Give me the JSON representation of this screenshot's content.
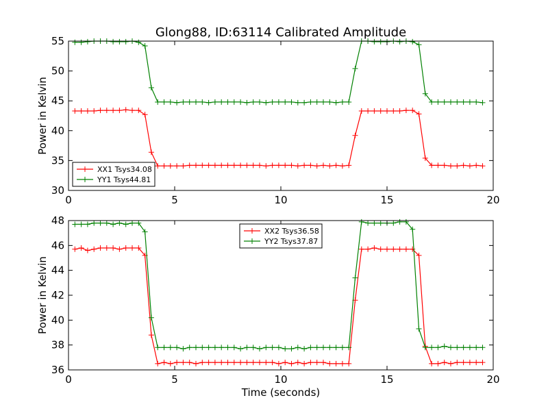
{
  "title": "Glong88, ID:63114 Calibrated Amplitude",
  "colors": {
    "red": "#ff0000",
    "green": "#008000"
  },
  "chart_data": [
    {
      "type": "line",
      "xlim": [
        0,
        20
      ],
      "ylim": [
        30,
        55
      ],
      "xticks": [
        0,
        5,
        10,
        15,
        20
      ],
      "yticks": [
        30,
        35,
        40,
        45,
        50,
        55
      ],
      "xlabel": "",
      "ylabel": "Power in Kelvin",
      "legend_position": "lower-left",
      "grid": false,
      "series": [
        {
          "name": "XX1 Tsys34.08",
          "color": "#ff0000",
          "x": [
            0.3,
            0.6,
            0.9,
            1.2,
            1.5,
            1.8,
            2.1,
            2.4,
            2.7,
            3.0,
            3.3,
            3.6,
            3.9,
            4.2,
            4.5,
            4.8,
            5.1,
            5.4,
            5.7,
            6.0,
            6.3,
            6.6,
            6.9,
            7.2,
            7.5,
            7.8,
            8.1,
            8.4,
            8.7,
            9.0,
            9.3,
            9.6,
            9.9,
            10.2,
            10.5,
            10.8,
            11.1,
            11.4,
            11.7,
            12.0,
            12.3,
            12.6,
            12.9,
            13.2,
            13.5,
            13.8,
            14.1,
            14.4,
            14.7,
            15.0,
            15.3,
            15.6,
            15.9,
            16.2,
            16.5,
            16.8,
            17.1,
            17.4,
            17.7,
            18.0,
            18.3,
            18.6,
            18.9,
            19.2,
            19.5
          ],
          "y": [
            43.3,
            43.3,
            43.3,
            43.3,
            43.4,
            43.4,
            43.4,
            43.4,
            43.5,
            43.4,
            43.4,
            42.7,
            36.4,
            34.1,
            34.1,
            34.1,
            34.1,
            34.1,
            34.2,
            34.2,
            34.2,
            34.2,
            34.2,
            34.2,
            34.2,
            34.2,
            34.2,
            34.2,
            34.2,
            34.2,
            34.1,
            34.2,
            34.2,
            34.2,
            34.2,
            34.1,
            34.2,
            34.2,
            34.1,
            34.2,
            34.1,
            34.2,
            34.1,
            34.2,
            39.2,
            43.3,
            43.3,
            43.3,
            43.3,
            43.3,
            43.3,
            43.3,
            43.4,
            43.4,
            42.8,
            35.4,
            34.2,
            34.2,
            34.2,
            34.1,
            34.1,
            34.2,
            34.1,
            34.2,
            34.1
          ]
        },
        {
          "name": "YY1 Tsys44.81",
          "color": "#008000",
          "x": [
            0.3,
            0.6,
            0.9,
            1.2,
            1.5,
            1.8,
            2.1,
            2.4,
            2.7,
            3.0,
            3.3,
            3.6,
            3.9,
            4.2,
            4.5,
            4.8,
            5.1,
            5.4,
            5.7,
            6.0,
            6.3,
            6.6,
            6.9,
            7.2,
            7.5,
            7.8,
            8.1,
            8.4,
            8.7,
            9.0,
            9.3,
            9.6,
            9.9,
            10.2,
            10.5,
            10.8,
            11.1,
            11.4,
            11.7,
            12.0,
            12.3,
            12.6,
            12.9,
            13.2,
            13.5,
            13.8,
            14.1,
            14.4,
            14.7,
            15.0,
            15.3,
            15.6,
            15.9,
            16.2,
            16.5,
            16.8,
            17.1,
            17.4,
            17.7,
            18.0,
            18.3,
            18.6,
            18.9,
            19.2,
            19.5
          ],
          "y": [
            54.8,
            54.8,
            54.9,
            55.0,
            55.0,
            55.0,
            54.9,
            54.9,
            54.9,
            55.0,
            54.8,
            54.2,
            47.2,
            44.8,
            44.8,
            44.8,
            44.7,
            44.8,
            44.8,
            44.8,
            44.8,
            44.7,
            44.8,
            44.8,
            44.8,
            44.8,
            44.8,
            44.7,
            44.8,
            44.8,
            44.7,
            44.8,
            44.8,
            44.8,
            44.8,
            44.7,
            44.7,
            44.8,
            44.8,
            44.8,
            44.8,
            44.7,
            44.8,
            44.8,
            50.4,
            55.0,
            55.0,
            54.9,
            54.9,
            54.9,
            55.0,
            54.9,
            55.0,
            54.9,
            54.4,
            46.2,
            44.8,
            44.8,
            44.8,
            44.8,
            44.8,
            44.8,
            44.8,
            44.8,
            44.7
          ]
        }
      ]
    },
    {
      "type": "line",
      "xlim": [
        0,
        20
      ],
      "ylim": [
        36,
        48
      ],
      "xticks": [
        0,
        5,
        10,
        15,
        20
      ],
      "yticks": [
        36,
        38,
        40,
        42,
        44,
        46,
        48
      ],
      "xlabel": "Time (seconds)",
      "ylabel": "Power in Kelvin",
      "legend_position": "upper-center",
      "grid": false,
      "series": [
        {
          "name": "XX2 Tsys36.58",
          "color": "#ff0000",
          "x": [
            0.3,
            0.6,
            0.9,
            1.2,
            1.5,
            1.8,
            2.1,
            2.4,
            2.7,
            3.0,
            3.3,
            3.6,
            3.9,
            4.2,
            4.5,
            4.8,
            5.1,
            5.4,
            5.7,
            6.0,
            6.3,
            6.6,
            6.9,
            7.2,
            7.5,
            7.8,
            8.1,
            8.4,
            8.7,
            9.0,
            9.3,
            9.6,
            9.9,
            10.2,
            10.5,
            10.8,
            11.1,
            11.4,
            11.7,
            12.0,
            12.3,
            12.6,
            12.9,
            13.2,
            13.5,
            13.8,
            14.1,
            14.4,
            14.7,
            15.0,
            15.3,
            15.6,
            15.9,
            16.2,
            16.5,
            16.8,
            17.1,
            17.4,
            17.7,
            18.0,
            18.3,
            18.6,
            18.9,
            19.2,
            19.5
          ],
          "y": [
            45.7,
            45.8,
            45.6,
            45.7,
            45.8,
            45.8,
            45.8,
            45.7,
            45.8,
            45.8,
            45.8,
            45.2,
            38.8,
            36.5,
            36.6,
            36.5,
            36.6,
            36.6,
            36.6,
            36.5,
            36.6,
            36.6,
            36.6,
            36.6,
            36.6,
            36.6,
            36.6,
            36.6,
            36.6,
            36.6,
            36.6,
            36.6,
            36.5,
            36.6,
            36.5,
            36.6,
            36.5,
            36.6,
            36.6,
            36.6,
            36.5,
            36.5,
            36.5,
            36.5,
            41.6,
            45.7,
            45.7,
            45.8,
            45.7,
            45.7,
            45.7,
            45.7,
            45.7,
            45.7,
            45.2,
            37.9,
            36.5,
            36.5,
            36.6,
            36.5,
            36.6,
            36.6,
            36.6,
            36.6,
            36.6
          ]
        },
        {
          "name": "YY2 Tsys37.87",
          "color": "#008000",
          "x": [
            0.3,
            0.6,
            0.9,
            1.2,
            1.5,
            1.8,
            2.1,
            2.4,
            2.7,
            3.0,
            3.3,
            3.6,
            3.9,
            4.2,
            4.5,
            4.8,
            5.1,
            5.4,
            5.7,
            6.0,
            6.3,
            6.6,
            6.9,
            7.2,
            7.5,
            7.8,
            8.1,
            8.4,
            8.7,
            9.0,
            9.3,
            9.6,
            9.9,
            10.2,
            10.5,
            10.8,
            11.1,
            11.4,
            11.7,
            12.0,
            12.3,
            12.6,
            12.9,
            13.2,
            13.5,
            13.8,
            14.1,
            14.4,
            14.7,
            15.0,
            15.3,
            15.6,
            15.9,
            16.2,
            16.5,
            16.8,
            17.1,
            17.4,
            17.7,
            18.0,
            18.3,
            18.6,
            18.9,
            19.2,
            19.5
          ],
          "y": [
            47.7,
            47.7,
            47.7,
            47.8,
            47.8,
            47.8,
            47.7,
            47.8,
            47.7,
            47.8,
            47.8,
            47.1,
            40.2,
            37.8,
            37.8,
            37.8,
            37.8,
            37.7,
            37.8,
            37.8,
            37.8,
            37.8,
            37.8,
            37.8,
            37.8,
            37.8,
            37.7,
            37.8,
            37.8,
            37.7,
            37.8,
            37.8,
            37.8,
            37.7,
            37.7,
            37.8,
            37.7,
            37.8,
            37.8,
            37.8,
            37.8,
            37.8,
            37.8,
            37.8,
            43.4,
            47.9,
            47.8,
            47.8,
            47.8,
            47.8,
            47.8,
            47.9,
            47.9,
            47.3,
            39.3,
            37.8,
            37.8,
            37.8,
            37.9,
            37.8,
            37.8,
            37.8,
            37.8,
            37.8,
            37.8
          ]
        }
      ]
    }
  ]
}
